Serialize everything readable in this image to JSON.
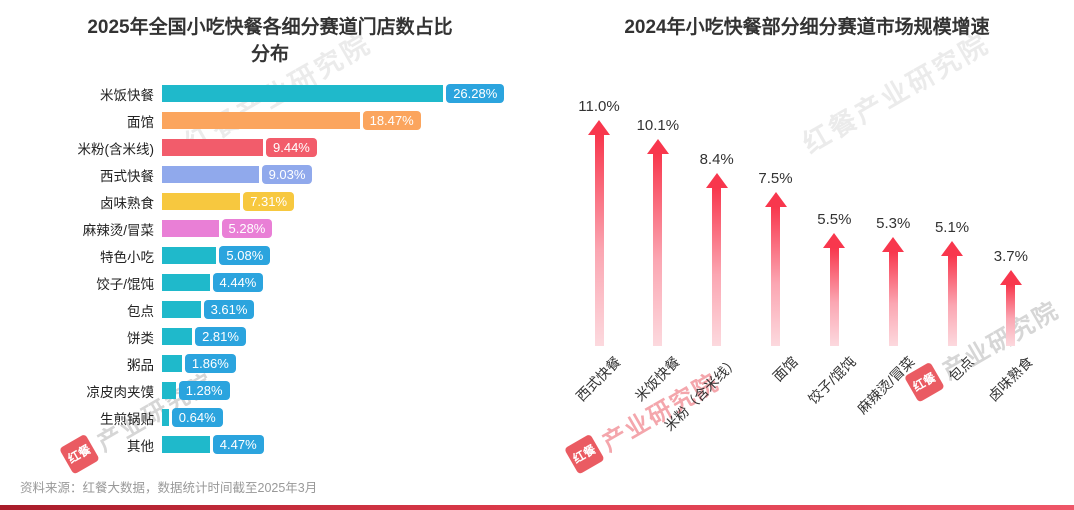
{
  "page": {
    "footer_source": "资料来源：红餐大数据，数据统计时间截至2025年3月"
  },
  "watermark": {
    "brand_short": "红餐",
    "brand_rest": "产业研究院",
    "brand_full": "红餐产业研究院"
  },
  "chart_data": [
    {
      "type": "bar",
      "orientation": "horizontal",
      "title": "2025年全国小吃快餐各细分赛道门店数占比分布",
      "title_line1": "2025年全国小吃快餐各细分赛道门店数占比",
      "title_line2": "分布",
      "unit": "%",
      "xlim": [
        0,
        28
      ],
      "grid": false,
      "categories": [
        "米饭快餐",
        "面馆",
        "米粉(含米线)",
        "西式快餐",
        "卤味熟食",
        "麻辣烫/冒菜",
        "特色小吃",
        "饺子/馄饨",
        "包点",
        "饼类",
        "粥品",
        "凉皮肉夹馍",
        "生煎锅贴",
        "其他"
      ],
      "values": [
        26.28,
        18.47,
        9.44,
        9.03,
        7.31,
        5.28,
        5.08,
        4.44,
        3.61,
        2.81,
        1.86,
        1.28,
        0.64,
        4.47
      ],
      "labels": [
        "26.28%",
        "18.47%",
        "9.44%",
        "9.03%",
        "7.31%",
        "5.28%",
        "5.08%",
        "4.44%",
        "3.61%",
        "2.81%",
        "1.86%",
        "1.28%",
        "0.64%",
        "4.47%"
      ],
      "bar_colors": [
        "#1FB9CB",
        "#FBA55E",
        "#F25C6B",
        "#90A9EC",
        "#F7C83F",
        "#E97FD6",
        "#1FB9CB",
        "#1FB9CB",
        "#1FB9CB",
        "#1FB9CB",
        "#1FB9CB",
        "#1FB9CB",
        "#1FB9CB",
        "#1FB9CB"
      ],
      "chip_colors": [
        "#2BA4DE",
        "#FBA55E",
        "#F25C6B",
        "#90A9EC",
        "#F7C83F",
        "#E97FD6",
        "#2BA4DE",
        "#2BA4DE",
        "#2BA4DE",
        "#2BA4DE",
        "#2BA4DE",
        "#2BA4DE",
        "#2BA4DE",
        "#2BA4DE"
      ]
    },
    {
      "type": "bar",
      "variant": "arrow",
      "title": "2024年小吃快餐部分细分赛道市场规模增速",
      "unit": "%",
      "ylim": [
        0,
        12
      ],
      "grid": false,
      "categories": [
        "西式快餐",
        "米饭快餐",
        "米粉（含米线）",
        "面馆",
        "饺子/馄饨",
        "麻辣烫/冒菜",
        "包点",
        "卤味熟食"
      ],
      "values": [
        11.0,
        10.1,
        8.4,
        7.5,
        5.5,
        5.3,
        5.1,
        3.7
      ],
      "labels": [
        "11.0%",
        "10.1%",
        "8.4%",
        "7.5%",
        "5.5%",
        "5.3%",
        "5.1%",
        "3.7%"
      ],
      "arrow_gradient": [
        "#FCD9DE",
        "#F8374D"
      ]
    }
  ]
}
